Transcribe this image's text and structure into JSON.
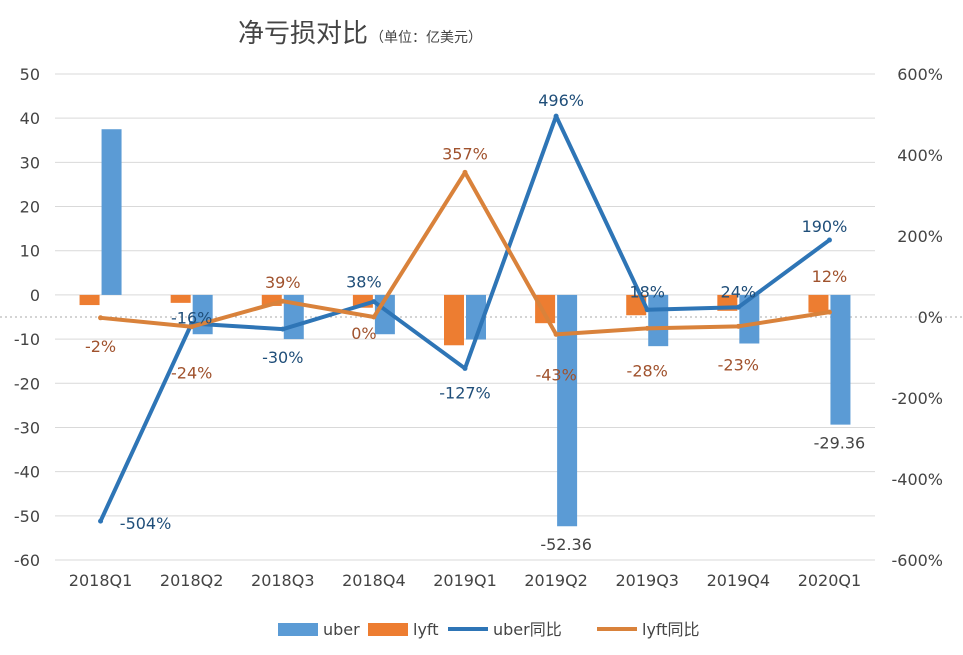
{
  "chart_data": {
    "type": "bar",
    "title": "净亏损对比",
    "subtitle": "（单位：亿美元）",
    "categories": [
      "2018Q1",
      "2018Q2",
      "2018Q3",
      "2018Q4",
      "2019Q1",
      "2019Q2",
      "2019Q3",
      "2019Q4",
      "2020Q1"
    ],
    "ylim": [
      -60,
      50
    ],
    "yticks": [
      50,
      40,
      30,
      20,
      10,
      0,
      -10,
      -20,
      -30,
      -40,
      -50,
      -60
    ],
    "y2lim": [
      -600,
      600
    ],
    "y2ticks": [
      "600%",
      "400%",
      "200%",
      "0%",
      "-200%",
      "-400%",
      "-600%"
    ],
    "y2tick_values": [
      600,
      400,
      200,
      0,
      -200,
      -400,
      -600
    ],
    "grid": true,
    "legend_position": "bottom",
    "series": [
      {
        "name": "uber",
        "kind": "bar",
        "axis": "left",
        "color": "#5B9BD5",
        "values": [
          37.5,
          -8.9,
          -10.0,
          -8.9,
          -10.1,
          -52.36,
          -11.6,
          -11.0,
          -29.36
        ],
        "labels": [
          "",
          "",
          "",
          "",
          "",
          "-52.36",
          "",
          "",
          "-29.36"
        ]
      },
      {
        "name": "lyft",
        "kind": "bar",
        "axis": "left",
        "color": "#ED7D31",
        "values": [
          -2.3,
          -1.8,
          -2.5,
          -2.9,
          -11.4,
          -6.4,
          -4.6,
          -3.6,
          -4.0
        ],
        "labels": [
          "",
          "",
          "",
          "",
          "",
          "",
          "",
          "",
          ""
        ]
      },
      {
        "name": "uber同比",
        "kind": "line",
        "axis": "right",
        "color": "#2E75B6",
        "values": [
          -504,
          -16,
          -30,
          38,
          -127,
          496,
          18,
          24,
          190
        ],
        "labels": [
          "-504%",
          "-16%",
          "-30%",
          "38%",
          "-127%",
          "496%",
          "18%",
          "24%",
          "190%"
        ]
      },
      {
        "name": "lyft同比",
        "kind": "line",
        "axis": "right",
        "color": "#D9823B",
        "values": [
          -2,
          -24,
          39,
          0,
          357,
          -43,
          -28,
          -23,
          12
        ],
        "labels": [
          "-2%",
          "-24%",
          "39%",
          "0%",
          "357%",
          "-43%",
          "-28%",
          "-23%",
          "12%"
        ]
      }
    ]
  }
}
